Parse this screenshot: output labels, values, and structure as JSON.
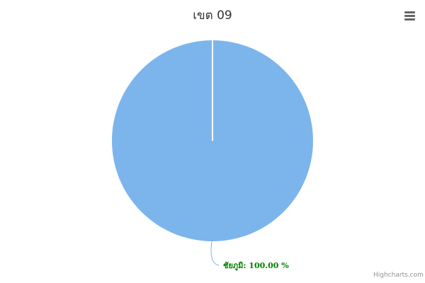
{
  "chart_data": {
    "type": "pie",
    "title": "เขต 09",
    "slices": [
      {
        "name": "ชัยภูมิ",
        "value": 100.0,
        "label": "ชัยภูมิ: 100.00 %",
        "color": "#7cb5ec"
      }
    ],
    "label_color": "#008000"
  },
  "ui": {
    "menu_icon": "hamburger-menu-icon",
    "credits": "Highcharts.com"
  }
}
